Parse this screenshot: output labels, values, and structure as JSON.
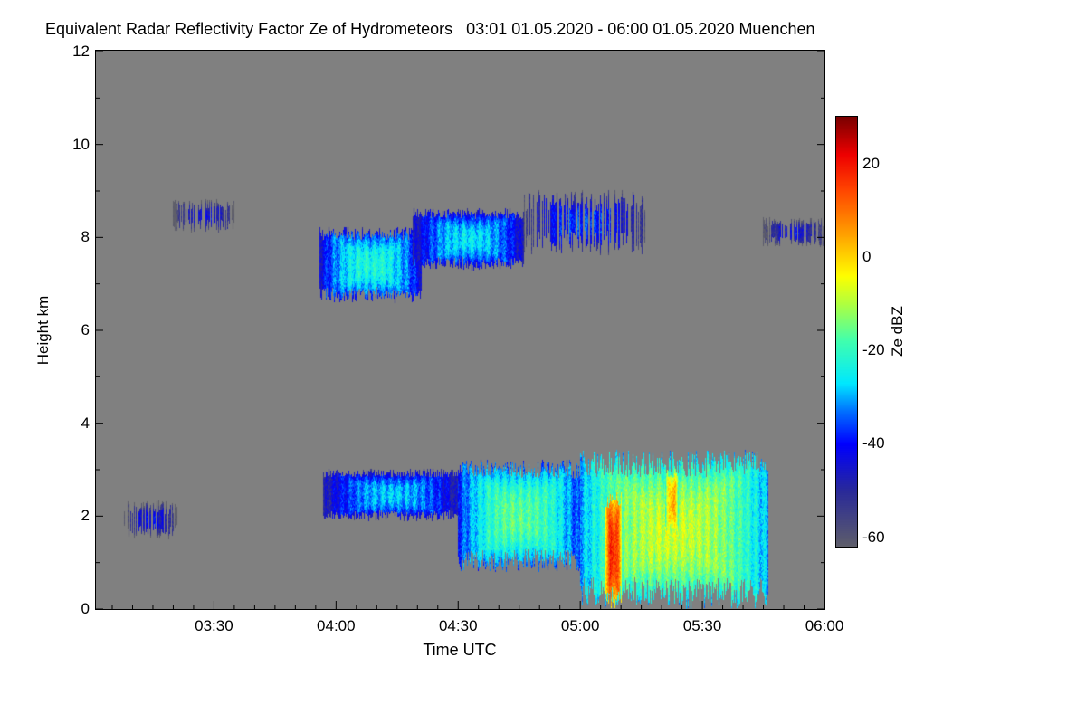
{
  "chart_data": {
    "type": "heatmap",
    "title": "Equivalent Radar Reflectivity Factor Ze of Hydrometeors   03:01 01.05.2020 - 06:00 01.05.2020 Muenchen",
    "xlabel": "Time UTC",
    "ylabel": "Height km",
    "colorbar_label": "Ze dBZ",
    "xlim_minutes_utc": [
      181,
      360
    ],
    "x_ticks": [
      {
        "label": "03:30",
        "min": 210
      },
      {
        "label": "04:00",
        "min": 240
      },
      {
        "label": "04:30",
        "min": 270
      },
      {
        "label": "05:00",
        "min": 300
      },
      {
        "label": "05:30",
        "min": 330
      },
      {
        "label": "06:00",
        "min": 360
      }
    ],
    "ylim": [
      0,
      12
    ],
    "y_ticks": [
      0,
      2,
      4,
      6,
      8,
      10,
      12
    ],
    "clim": [
      -62,
      30
    ],
    "colorbar_ticks": [
      20,
      0,
      -20,
      -40,
      -60
    ],
    "background_color": "#808080",
    "colormap": [
      {
        "v": -62,
        "c": "#5f5f6a"
      },
      {
        "v": -50,
        "c": "#2a2a9a"
      },
      {
        "v": -40,
        "c": "#0000ff"
      },
      {
        "v": -33,
        "c": "#0070ff"
      },
      {
        "v": -27,
        "c": "#00e8ff"
      },
      {
        "v": -18,
        "c": "#40ffb0"
      },
      {
        "v": -10,
        "c": "#b0ff40"
      },
      {
        "v": -4,
        "c": "#ffff00"
      },
      {
        "v": 5,
        "c": "#ffa000"
      },
      {
        "v": 15,
        "c": "#ff4000"
      },
      {
        "v": 22,
        "c": "#ee0000"
      },
      {
        "v": 30,
        "c": "#7a0000"
      }
    ],
    "echo_regions": [
      {
        "t": [
          236,
          261
        ],
        "z": [
          6.6,
          8.2
        ],
        "dbz": -22
      },
      {
        "t": [
          259,
          286
        ],
        "z": [
          7.3,
          8.6
        ],
        "dbz": -26
      },
      {
        "t": [
          200,
          215
        ],
        "z": [
          8.1,
          8.8
        ],
        "dbz": -42
      },
      {
        "t": [
          286,
          316
        ],
        "z": [
          7.6,
          9.0
        ],
        "dbz": -36
      },
      {
        "t": [
          345,
          360
        ],
        "z": [
          7.8,
          8.4
        ],
        "dbz": -42
      },
      {
        "t": [
          237,
          270
        ],
        "z": [
          1.9,
          3.0
        ],
        "dbz": -28
      },
      {
        "t": [
          270,
          300
        ],
        "z": [
          0.8,
          3.2
        ],
        "dbz": -16
      },
      {
        "t": [
          300,
          346
        ],
        "z": [
          0.0,
          3.4
        ],
        "dbz": -8
      },
      {
        "t": [
          306,
          310
        ],
        "z": [
          0.0,
          2.5
        ],
        "dbz": 18
      },
      {
        "t": [
          321,
          324
        ],
        "z": [
          1.6,
          3.0
        ],
        "dbz": 5
      },
      {
        "t": [
          188,
          201
        ],
        "z": [
          1.5,
          2.3
        ],
        "dbz": -42
      }
    ]
  }
}
